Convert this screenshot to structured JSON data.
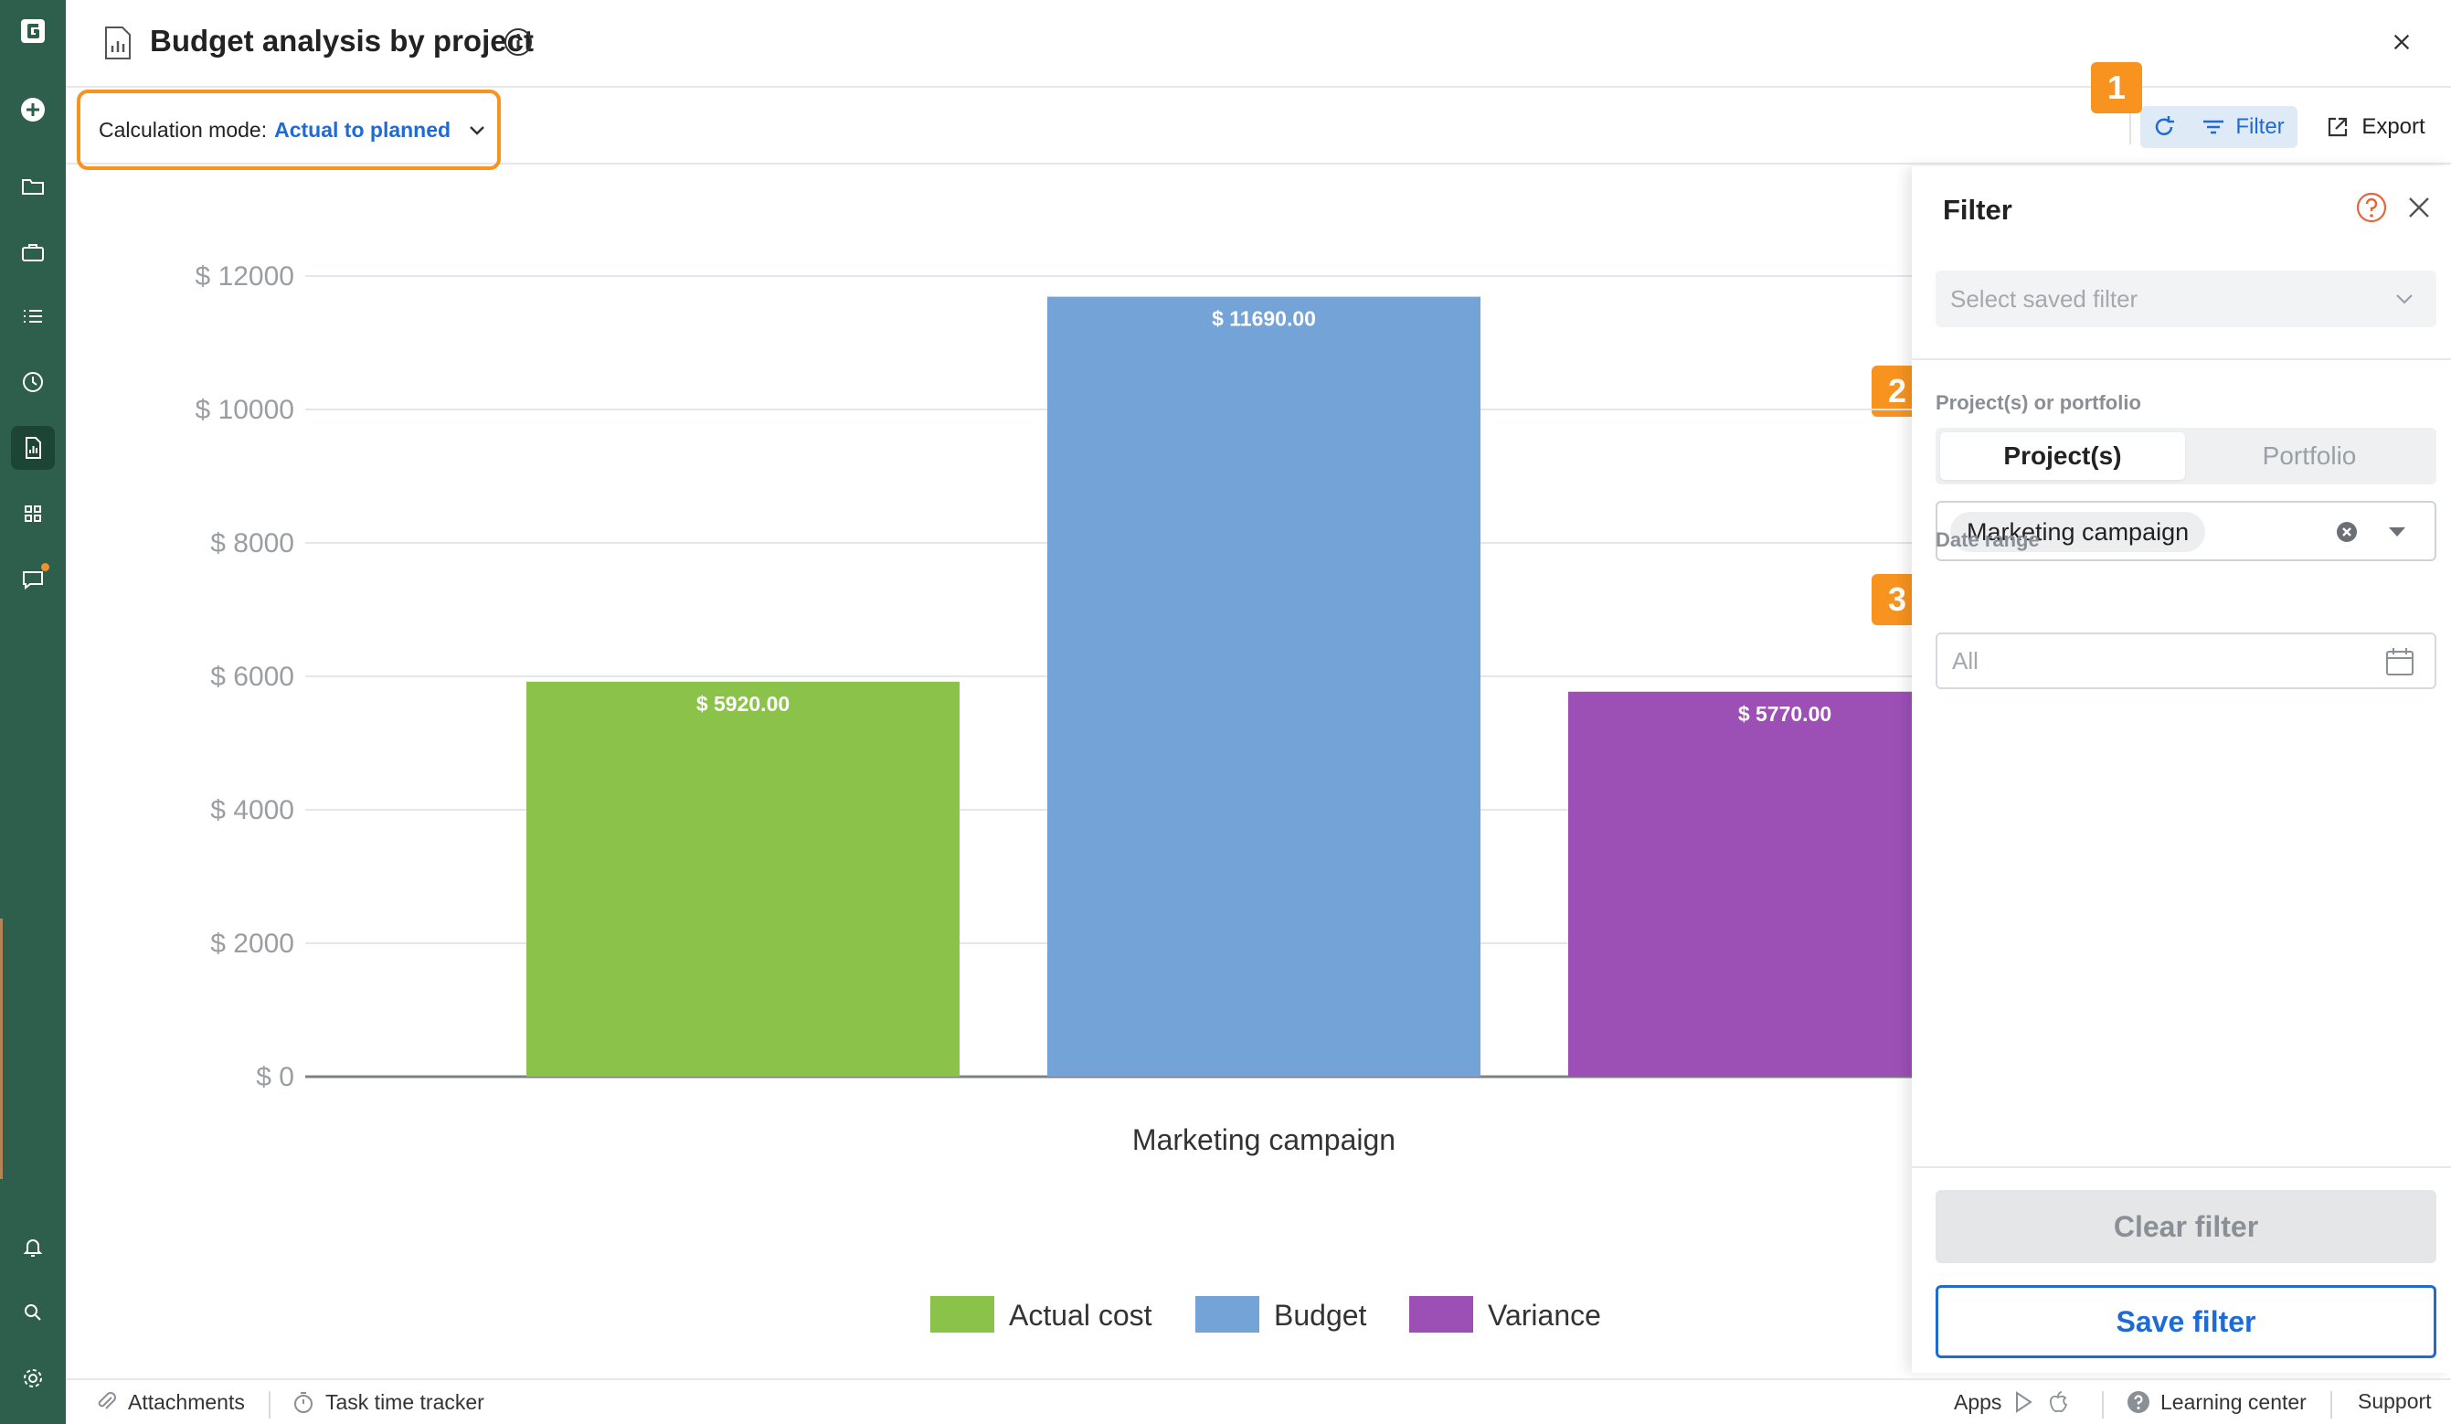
{
  "header": {
    "title": "Budget analysis by project"
  },
  "toolbar": {
    "calc_mode_label": "Calculation mode:",
    "calc_mode_value": "Actual to planned",
    "filter_label": "Filter",
    "export_label": "Export"
  },
  "badges": [
    "1",
    "2",
    "3"
  ],
  "chart_data": {
    "type": "bar",
    "categories": [
      "Marketing campaign"
    ],
    "series": [
      {
        "name": "Actual cost",
        "values": [
          5920.0
        ],
        "color": "#8bc34a",
        "label": "$ 5920.00"
      },
      {
        "name": "Budget",
        "values": [
          11690.0
        ],
        "color": "#74a3d8",
        "label": "$ 11690.00"
      },
      {
        "name": "Variance",
        "values": [
          5770.0
        ],
        "color": "#9c50b6",
        "label": "$ 5770.00"
      }
    ],
    "yticks": [
      "$ 0",
      "$ 2000",
      "$ 4000",
      "$ 6000",
      "$ 8000",
      "$ 10000",
      "$ 12000"
    ],
    "ylim": [
      0,
      12000
    ],
    "grid": true,
    "legend_position": "bottom"
  },
  "filter_panel": {
    "title": "Filter",
    "saved_filter_placeholder": "Select saved filter",
    "project_label": "Project(s) or portfolio",
    "tab_projects": "Project(s)",
    "tab_portfolio": "Portfolio",
    "selected_project": "Marketing campaign",
    "date_label": "Date range",
    "date_value": "All",
    "clear_label": "Clear filter",
    "save_label": "Save filter"
  },
  "footer": {
    "attachments": "Attachments",
    "time_tracker": "Task time tracker",
    "apps": "Apps",
    "learning": "Learning center",
    "support": "Support"
  }
}
